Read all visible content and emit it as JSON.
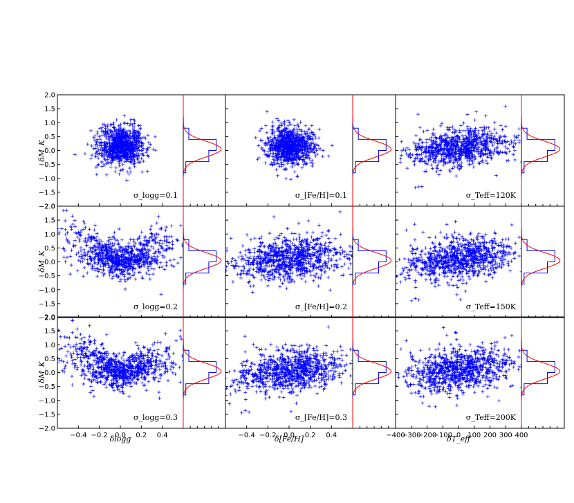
{
  "figure": {
    "ylabel": "δM_K",
    "ytick_labels": [
      "−2.0",
      "−1.5",
      "−1.0",
      "−0.5",
      "0.0",
      "0.5",
      "1.0",
      "1.5",
      "2.0"
    ],
    "columns": [
      {
        "xlabel": "δlogg",
        "xtick_labels": [
          "−0.4",
          "−0.2",
          "0.0",
          "0.2",
          "0.4"
        ],
        "xlim": [
          -0.6,
          0.6
        ]
      },
      {
        "xlabel": "δ[Fe/H]",
        "xtick_labels": [
          "−0.4",
          "−0.2",
          "0.0",
          "0.2",
          "0.4"
        ],
        "xlim": [
          -0.6,
          0.6
        ]
      },
      {
        "xlabel": "δT_eff",
        "xtick_labels": [
          "−400",
          "−300",
          "−200",
          "−100",
          "0",
          "100",
          "200",
          "300",
          "400"
        ],
        "xlim": [
          -400,
          400
        ]
      }
    ],
    "annotations": [
      [
        "σ_logg=0.1",
        "σ_[Fe/H]=0.1",
        "σ_Teff=120K"
      ],
      [
        "σ_logg=0.2",
        "σ_[Fe/H]=0.2",
        "σ_Teff=150K"
      ],
      [
        "σ_logg=0.3",
        "σ_[Fe/H]=0.3",
        "σ_Teff=200K"
      ]
    ]
  },
  "chart_data": {
    "type": "scatter",
    "layout": "3x3 grid of scatter panels, each with a side histogram of δM_K and a red Gaussian fit",
    "ylim": [
      -2.0,
      2.0
    ],
    "marker": "+",
    "marker_color": "#0000ff",
    "hist_color": "#0000ff",
    "fit_color": "#ff0000",
    "grid": false,
    "panels": [
      {
        "row": 0,
        "col": 0,
        "x_var": "δlogg",
        "sigma": "σ_logg=0.1",
        "x_range": [
          -0.28,
          0.3
        ],
        "shape": "cloud",
        "y_center": 0.15,
        "y_spread": 0.35
      },
      {
        "row": 0,
        "col": 1,
        "x_var": "δ[Fe/H]",
        "sigma": "σ_[Fe/H]=0.1",
        "x_range": [
          -0.28,
          0.3
        ],
        "shape": "cloud",
        "y_center": 0.15,
        "y_spread": 0.35
      },
      {
        "row": 0,
        "col": 2,
        "x_var": "δT_eff",
        "sigma": "σ_Teff=120K",
        "x_range": [
          -370,
          370
        ],
        "shape": "tilted",
        "y_center": 0.1,
        "y_spread": 0.3
      },
      {
        "row": 1,
        "col": 0,
        "x_var": "δlogg",
        "sigma": "σ_logg=0.2",
        "x_range": [
          -0.6,
          0.6
        ],
        "shape": "v",
        "y_center": 0.1,
        "y_spread": 0.3
      },
      {
        "row": 1,
        "col": 1,
        "x_var": "δ[Fe/H]",
        "sigma": "σ_[Fe/H]=0.2",
        "x_range": [
          -0.6,
          0.6
        ],
        "shape": "tilted",
        "y_center": 0.1,
        "y_spread": 0.35
      },
      {
        "row": 1,
        "col": 2,
        "x_var": "δT_eff",
        "sigma": "σ_Teff=150K",
        "x_range": [
          -400,
          400
        ],
        "shape": "tilted",
        "y_center": 0.1,
        "y_spread": 0.35
      },
      {
        "row": 2,
        "col": 0,
        "x_var": "δlogg",
        "sigma": "σ_logg=0.3",
        "x_range": [
          -0.6,
          0.6
        ],
        "shape": "v",
        "y_center": 0.05,
        "y_spread": 0.3
      },
      {
        "row": 2,
        "col": 1,
        "x_var": "δ[Fe/H]",
        "sigma": "σ_[Fe/H]=0.3",
        "x_range": [
          -0.6,
          0.6
        ],
        "shape": "tilted",
        "y_center": 0.05,
        "y_spread": 0.35
      },
      {
        "row": 2,
        "col": 2,
        "x_var": "δT_eff",
        "sigma": "σ_Teff=200K",
        "x_range": [
          -400,
          400
        ],
        "shape": "tilted",
        "y_center": 0.1,
        "y_spread": 0.35
      }
    ],
    "histograms": {
      "y_bins": [
        -2.0,
        -1.6,
        -1.2,
        -0.8,
        -0.4,
        0.0,
        0.4,
        0.8,
        1.2,
        1.6,
        2.0
      ],
      "fit_mean": 0.05,
      "fit_sigma": 0.28
    }
  }
}
